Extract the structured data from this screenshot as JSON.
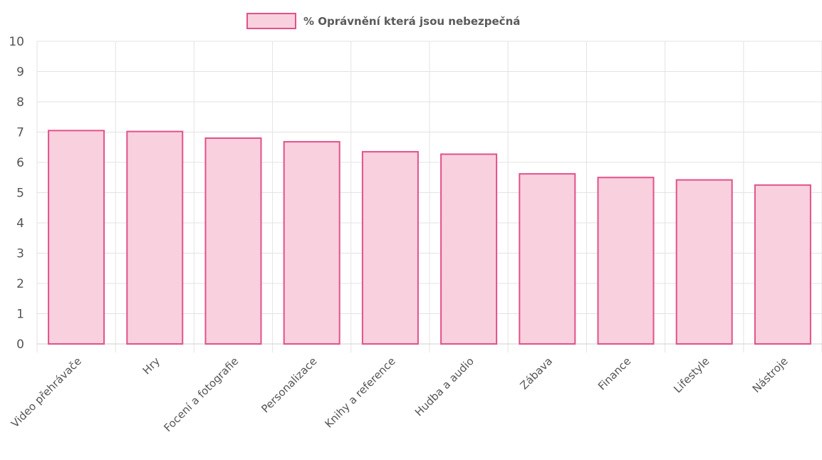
{
  "chart_data": {
    "type": "bar",
    "categories": [
      "Video přehrávače",
      "Hry",
      "Focení a fotografie",
      "Personalizace",
      "Knihy a reference",
      "Hudba a audio",
      "Zábava",
      "Finance",
      "Lifestyle",
      "Nástroje"
    ],
    "series": [
      {
        "name": "% Oprávnění která jsou nebezpečná",
        "values": [
          7.05,
          7.02,
          6.8,
          6.68,
          6.35,
          6.27,
          5.62,
          5.5,
          5.42,
          5.25
        ]
      }
    ],
    "ylim": [
      0,
      10
    ],
    "yticks": [
      0,
      1,
      2,
      3,
      4,
      5,
      6,
      7,
      8,
      9,
      10
    ],
    "xlabel": "",
    "ylabel": "",
    "grid": true,
    "legend_position": "top-center",
    "colors": {
      "bar_fill": "#f9d0de",
      "bar_stroke": "#e0528a"
    }
  }
}
